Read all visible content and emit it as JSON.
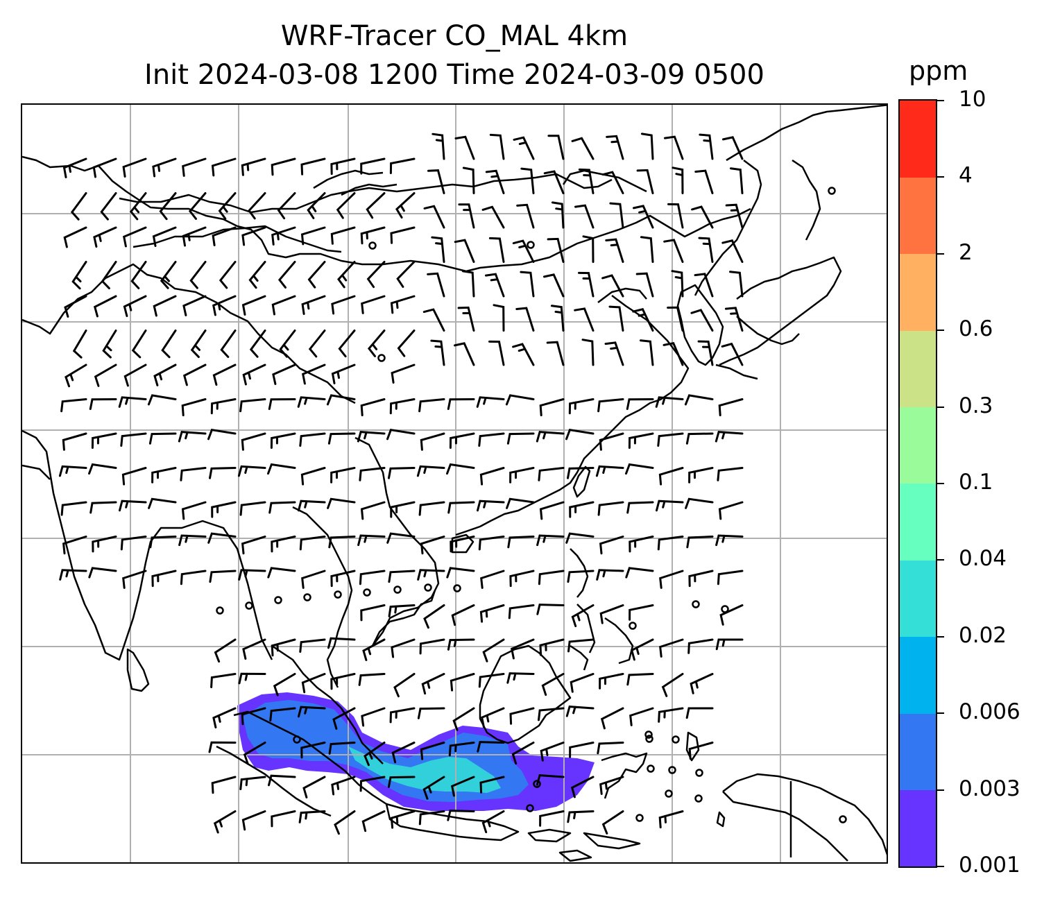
{
  "title": {
    "line1": "WRF-Tracer CO_MAL 4km",
    "line2": "Init 2024-03-08 1200 Time 2024-03-09 0500"
  },
  "colorbar": {
    "unit": "ppm",
    "levels": [
      "0.001",
      "0.003",
      "0.006",
      "0.02",
      "0.04",
      "0.1",
      "0.3",
      "0.6",
      "2",
      "4",
      "10"
    ],
    "colors": [
      "#6633ff",
      "#3377f2",
      "#00b2ee",
      "#33dfd6",
      "#66ffbf",
      "#99fb99",
      "#cce286",
      "#ffb060",
      "#ff7340",
      "#ff2a1a"
    ]
  },
  "map": {
    "gridlines": "on",
    "coastline_color": "#000000",
    "grid_color": "#b0b0b0",
    "plume_colors": {
      "outer": "#6633ff",
      "mid": "#3377f2",
      "inner": "#33dfd6"
    }
  }
}
